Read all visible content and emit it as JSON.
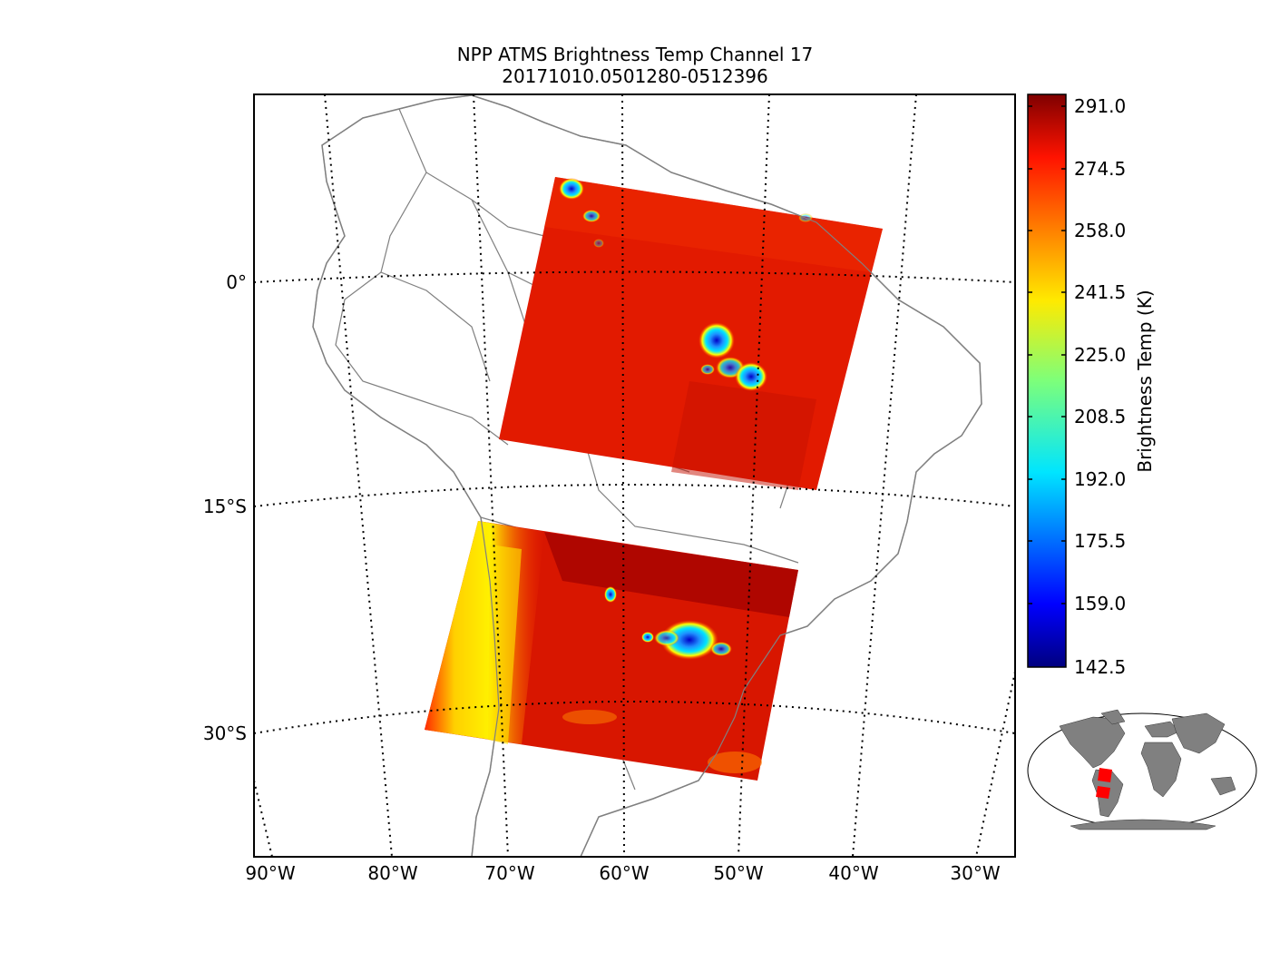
{
  "title": {
    "line1": "NPP ATMS Brightness Temp Channel 17",
    "line2": "20171010.0501280-0512396"
  },
  "map": {
    "longitude_labels": [
      "90°W",
      "80°W",
      "70°W",
      "60°W",
      "50°W",
      "40°W",
      "30°W"
    ],
    "latitude_labels": [
      "0°",
      "15°S",
      "30°S"
    ],
    "grid": "dotted",
    "land_fill": "#ffffff",
    "border_color": "#808080",
    "granules": 2
  },
  "colorbar": {
    "label": "Brightness Temp (K)",
    "ticks": [
      "291.0",
      "274.5",
      "258.0",
      "241.5",
      "225.0",
      "208.5",
      "192.0",
      "175.5",
      "159.0",
      "142.5"
    ],
    "range": [
      142.5,
      296.0
    ],
    "colormap": "jet"
  },
  "inset": {
    "land_color": "#808080",
    "swath_color": "#ff0000"
  }
}
